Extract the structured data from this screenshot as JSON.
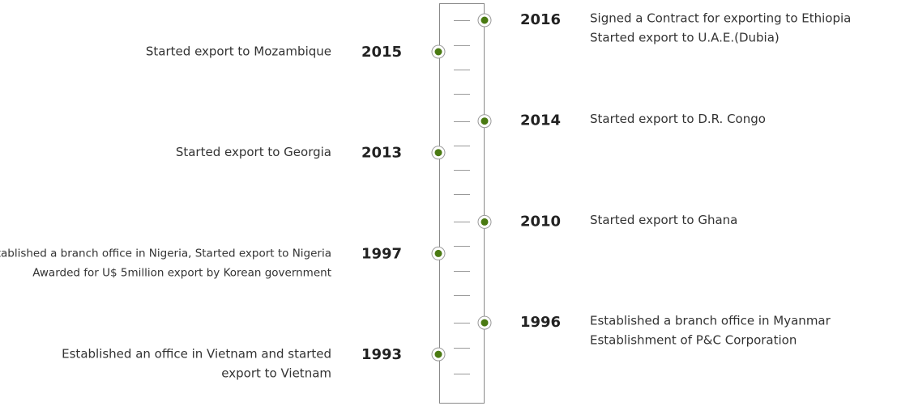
{
  "timeline": {
    "left": [
      {
        "year": "2015",
        "lines": [
          "Started export to Mozambique"
        ]
      },
      {
        "year": "2013",
        "lines": [
          "Started export to Georgia"
        ]
      },
      {
        "year": "1997",
        "lines": [
          "Established a branch office in Nigeria, Started export to Nigeria",
          "Awarded for U$ 5million export by Korean government"
        ]
      },
      {
        "year": "1993",
        "lines": [
          "Established an office in Vietnam and started",
          "export to Vietnam"
        ]
      }
    ],
    "right": [
      {
        "year": "2016",
        "lines": [
          "Signed a Contract for exporting to Ethiopia",
          "Started export to U.A.E.(Dubia)"
        ]
      },
      {
        "year": "2014",
        "lines": [
          "Started export to D.R. Congo"
        ]
      },
      {
        "year": "2010",
        "lines": [
          "Started export to Ghana"
        ]
      },
      {
        "year": "1996",
        "lines": [
          "Established a branch office in Myanmar",
          "Establishment of P&C Corporation"
        ]
      }
    ]
  }
}
